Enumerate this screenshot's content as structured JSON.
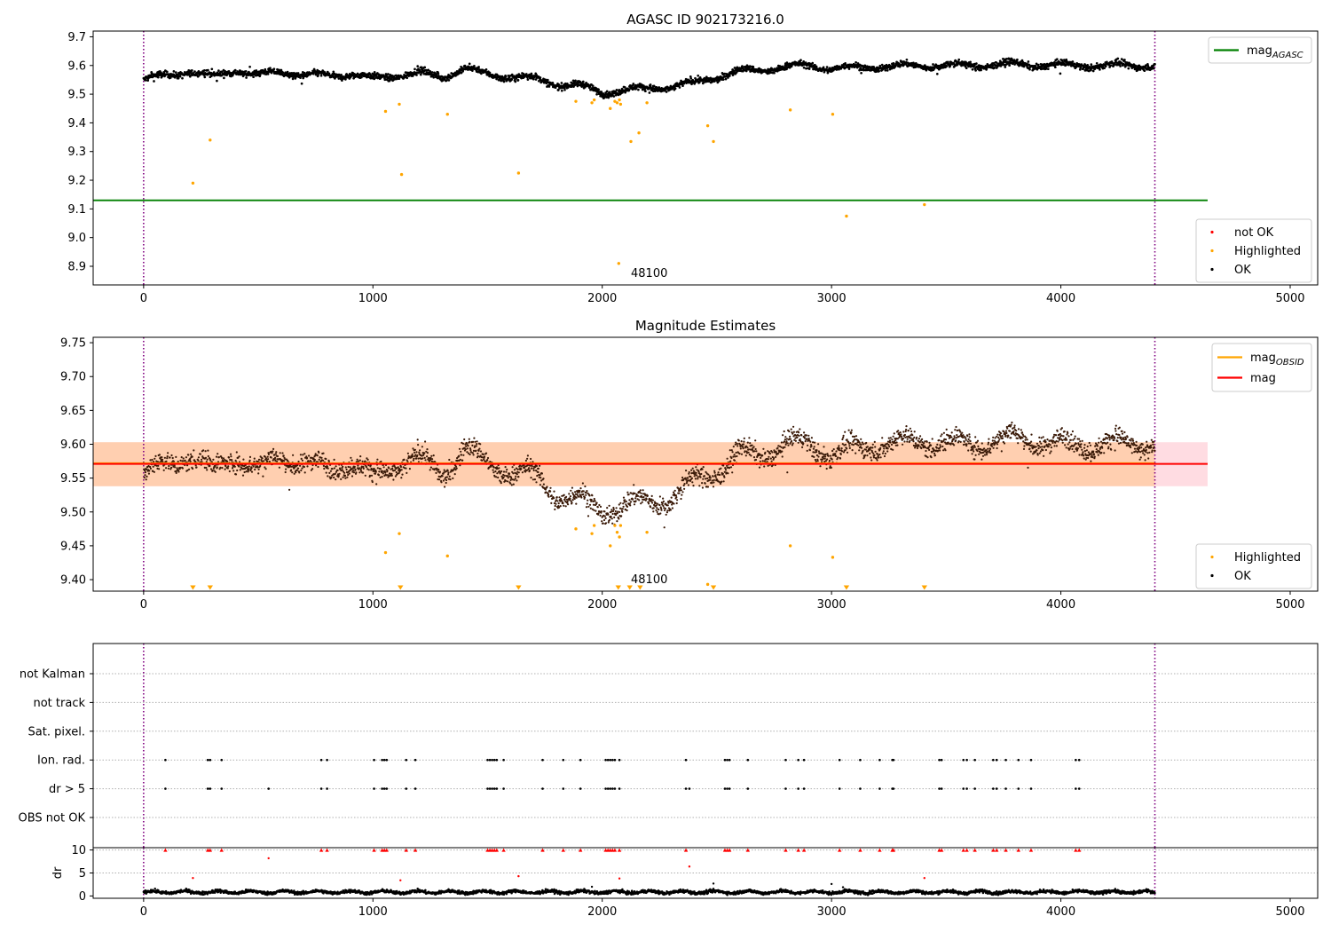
{
  "chart_data": [
    {
      "type": "scatter",
      "title": "AGASC ID 902173216.0",
      "xlim": [
        -220,
        5120
      ],
      "ylim": [
        8.835,
        9.72
      ],
      "xticks": [
        0,
        1000,
        2000,
        3000,
        4000,
        5000
      ],
      "yticks": [
        8.9,
        9.0,
        9.1,
        9.2,
        9.3,
        9.4,
        9.5,
        9.6,
        9.7
      ],
      "vlines": [
        0,
        4410
      ],
      "hlines": [
        {
          "name": "mag_AGASC",
          "y": 9.13,
          "x": [
            -220,
            4640
          ],
          "color": "#008000"
        }
      ],
      "annotations": [
        {
          "text": "48100",
          "x": 2120,
          "y": 8.88
        }
      ],
      "legends": [
        {
          "placement": "top-right",
          "entries": [
            {
              "label": "mag",
              "sub": "AGASC",
              "kind": "line",
              "color": "#008000"
            }
          ]
        },
        {
          "placement": "lower-right",
          "entries": [
            {
              "label": "not OK",
              "kind": "dot",
              "color": "#ff0000"
            },
            {
              "label": "Highlighted",
              "kind": "dot",
              "color": "#ffa500"
            },
            {
              "label": "OK",
              "kind": "dot",
              "color": "#000000"
            }
          ]
        }
      ],
      "series": [
        {
          "name": "OK",
          "color": "#000000",
          "trend": [
            [
              0,
              9.55
            ],
            [
              100,
              9.565
            ],
            [
              200,
              9.58
            ],
            [
              300,
              9.56
            ],
            [
              400,
              9.585
            ],
            [
              500,
              9.565
            ],
            [
              600,
              9.58
            ],
            [
              700,
              9.565
            ],
            [
              800,
              9.565
            ],
            [
              900,
              9.57
            ],
            [
              1000,
              9.555
            ],
            [
              1100,
              9.565
            ],
            [
              1200,
              9.575
            ],
            [
              1300,
              9.56
            ],
            [
              1400,
              9.59
            ],
            [
              1500,
              9.57
            ],
            [
              1600,
              9.56
            ],
            [
              1700,
              9.555
            ],
            [
              1800,
              9.535
            ],
            [
              1900,
              9.53
            ],
            [
              2000,
              9.505
            ],
            [
              2100,
              9.515
            ],
            [
              2200,
              9.52
            ],
            [
              2300,
              9.525
            ],
            [
              2400,
              9.54
            ],
            [
              2500,
              9.56
            ],
            [
              2600,
              9.58
            ],
            [
              2700,
              9.585
            ],
            [
              2800,
              9.595
            ],
            [
              2900,
              9.6
            ],
            [
              3000,
              9.59
            ],
            [
              3200,
              9.595
            ],
            [
              3400,
              9.6
            ],
            [
              3600,
              9.6
            ],
            [
              3800,
              9.605
            ],
            [
              4000,
              9.6
            ],
            [
              4200,
              9.6
            ],
            [
              4410,
              9.6
            ]
          ]
        },
        {
          "name": "Highlighted",
          "color": "#ffa500",
          "points": [
            [
              215,
              9.19
            ],
            [
              290,
              9.34
            ],
            [
              1055,
              9.44
            ],
            [
              1115,
              9.465
            ],
            [
              1125,
              9.22
            ],
            [
              1325,
              9.43
            ],
            [
              1635,
              9.225
            ],
            [
              1885,
              9.475
            ],
            [
              1955,
              9.47
            ],
            [
              1965,
              9.48
            ],
            [
              2035,
              9.45
            ],
            [
              2055,
              9.475
            ],
            [
              2065,
              9.47
            ],
            [
              2075,
              9.48
            ],
            [
              2080,
              9.465
            ],
            [
              2125,
              9.335
            ],
            [
              2160,
              9.365
            ],
            [
              2195,
              9.47
            ],
            [
              2460,
              9.39
            ],
            [
              2485,
              9.335
            ],
            [
              2820,
              9.445
            ],
            [
              3005,
              9.43
            ],
            [
              3065,
              9.075
            ],
            [
              3405,
              9.115
            ],
            [
              2072,
              8.91
            ]
          ]
        }
      ]
    },
    {
      "type": "scatter",
      "title": "Magnitude Estimates",
      "xlim": [
        -220,
        5120
      ],
      "ylim": [
        9.383,
        9.758
      ],
      "xticks": [
        0,
        1000,
        2000,
        3000,
        4000,
        5000
      ],
      "yticks": [
        9.4,
        9.45,
        9.5,
        9.55,
        9.6,
        9.65,
        9.7,
        9.75
      ],
      "vlines": [
        0,
        4410
      ],
      "bands": [
        {
          "y": [
            9.538,
            9.603
          ],
          "x": [
            -220,
            4640
          ],
          "color": "#ffc0cb",
          "opacity": 0.55
        },
        {
          "y": [
            9.538,
            9.603
          ],
          "x": [
            -220,
            4410
          ],
          "color": "#ffa500",
          "opacity": 0.22
        }
      ],
      "hlines": [
        {
          "name": "mag_OBSID",
          "y": 9.572,
          "x": [
            -220,
            4410
          ],
          "color": "#ffa500"
        },
        {
          "name": "mag",
          "y": 9.571,
          "x": [
            -220,
            4640
          ],
          "color": "#ff0000"
        }
      ],
      "annotations": [
        {
          "text": "48100",
          "x": 2120,
          "y": 9.41
        }
      ],
      "lower_limit_markers": [
        215,
        290,
        1120,
        1635,
        2070,
        2120,
        2165,
        2485,
        3065,
        3405
      ],
      "legends": [
        {
          "placement": "top-right",
          "entries": [
            {
              "label": "mag",
              "sub": "OBSID",
              "kind": "line",
              "color": "#ffa500"
            },
            {
              "label": "mag",
              "sub": "",
              "kind": "line",
              "color": "#ff0000"
            }
          ]
        },
        {
          "placement": "lower-right",
          "entries": [
            {
              "label": "Highlighted",
              "kind": "dot",
              "color": "#ffa500"
            },
            {
              "label": "OK",
              "kind": "dot",
              "color": "#000000"
            }
          ]
        }
      ],
      "series": [
        {
          "name": "OK",
          "color": "#000000",
          "trend": [
            [
              0,
              9.555
            ],
            [
              100,
              9.57
            ],
            [
              200,
              9.585
            ],
            [
              300,
              9.56
            ],
            [
              400,
              9.585
            ],
            [
              500,
              9.56
            ],
            [
              600,
              9.585
            ],
            [
              700,
              9.57
            ],
            [
              800,
              9.565
            ],
            [
              900,
              9.575
            ],
            [
              1000,
              9.55
            ],
            [
              1100,
              9.57
            ],
            [
              1200,
              9.58
            ],
            [
              1300,
              9.555
            ],
            [
              1400,
              9.595
            ],
            [
              1500,
              9.57
            ],
            [
              1600,
              9.56
            ],
            [
              1700,
              9.555
            ],
            [
              1800,
              9.525
            ],
            [
              1900,
              9.52
            ],
            [
              2000,
              9.5
            ],
            [
              2100,
              9.51
            ],
            [
              2200,
              9.515
            ],
            [
              2300,
              9.52
            ],
            [
              2400,
              9.545
            ],
            [
              2500,
              9.56
            ],
            [
              2600,
              9.585
            ],
            [
              2700,
              9.585
            ],
            [
              2800,
              9.6
            ],
            [
              2900,
              9.6
            ],
            [
              3000,
              9.585
            ],
            [
              3200,
              9.6
            ],
            [
              3400,
              9.605
            ],
            [
              3600,
              9.6
            ],
            [
              3800,
              9.61
            ],
            [
              4000,
              9.6
            ],
            [
              4200,
              9.6
            ],
            [
              4410,
              9.6
            ]
          ]
        },
        {
          "name": "Highlighted",
          "color": "#ffa500",
          "points": [
            [
              1055,
              9.44
            ],
            [
              1115,
              9.468
            ],
            [
              1325,
              9.435
            ],
            [
              1885,
              9.475
            ],
            [
              1955,
              9.468
            ],
            [
              1965,
              9.48
            ],
            [
              2035,
              9.45
            ],
            [
              2055,
              9.48
            ],
            [
              2065,
              9.47
            ],
            [
              2075,
              9.463
            ],
            [
              2080,
              9.48
            ],
            [
              2195,
              9.47
            ],
            [
              2460,
              9.393
            ],
            [
              2820,
              9.45
            ],
            [
              3005,
              9.433
            ]
          ]
        }
      ]
    },
    {
      "type": "scatter",
      "title": "",
      "xlim": [
        -220,
        5120
      ],
      "xticks": [
        0,
        1000,
        2000,
        3000,
        4000,
        5000
      ],
      "vlines": [
        0,
        4410
      ],
      "flag_rows": [
        "not Kalman",
        "not track",
        "Sat. pixel.",
        "Ion. rad.",
        "dr > 5",
        "OBS not OK"
      ],
      "flag_times": {
        "Ion. rad.": [
          95,
          280,
          290,
          340,
          775,
          800,
          1005,
          1040,
          1050,
          1060,
          1145,
          1185,
          1500,
          1510,
          1520,
          1530,
          1540,
          1570,
          1740,
          1830,
          1905,
          2015,
          2025,
          2035,
          2045,
          2055,
          2075,
          2365,
          2535,
          2545,
          2555,
          2635,
          2800,
          2855,
          2880,
          3035,
          3125,
          3210,
          3265,
          3270,
          3470,
          3480,
          3575,
          3590,
          3625,
          3705,
          3720,
          3760,
          3815,
          3870,
          4065,
          4080
        ],
        "dr > 5": [
          95,
          280,
          290,
          340,
          545,
          775,
          800,
          1005,
          1040,
          1050,
          1060,
          1145,
          1185,
          1500,
          1510,
          1520,
          1530,
          1540,
          1570,
          1740,
          1830,
          1905,
          2015,
          2025,
          2035,
          2045,
          2055,
          2075,
          2365,
          2380,
          2535,
          2545,
          2555,
          2635,
          2800,
          2855,
          2880,
          3035,
          3125,
          3210,
          3265,
          3270,
          3470,
          3480,
          3575,
          3590,
          3625,
          3705,
          3720,
          3760,
          3815,
          3870,
          4065,
          4080
        ]
      }
    },
    {
      "type": "scatter",
      "title": "",
      "ylabel": "dr",
      "xlim": [
        -220,
        5120
      ],
      "ylim": [
        -0.5,
        10.5
      ],
      "xticks": [
        0,
        1000,
        2000,
        3000,
        4000,
        5000
      ],
      "yticks": [
        0,
        5,
        10
      ],
      "vlines": [
        0,
        4410
      ],
      "clipped_at": 10,
      "series": [
        {
          "name": "OK",
          "color": "#000000",
          "typical": [
            0.2,
            1.6
          ]
        },
        {
          "name": "not OK",
          "color": "#ff0000",
          "points": [
            [
              95,
              10
            ],
            [
              280,
              10
            ],
            [
              290,
              10
            ],
            [
              340,
              10
            ],
            [
              775,
              10
            ],
            [
              800,
              10
            ],
            [
              1005,
              10
            ],
            [
              1040,
              10
            ],
            [
              1050,
              10
            ],
            [
              1060,
              10
            ],
            [
              1145,
              10
            ],
            [
              1185,
              10
            ],
            [
              1500,
              10
            ],
            [
              1510,
              10
            ],
            [
              1520,
              10
            ],
            [
              1530,
              10
            ],
            [
              1540,
              10
            ],
            [
              1570,
              10
            ],
            [
              1740,
              10
            ],
            [
              1830,
              10
            ],
            [
              1905,
              10
            ],
            [
              2015,
              10
            ],
            [
              2025,
              10
            ],
            [
              2035,
              10
            ],
            [
              2045,
              10
            ],
            [
              2055,
              10
            ],
            [
              2075,
              10
            ],
            [
              2365,
              10
            ],
            [
              2535,
              10
            ],
            [
              2545,
              10
            ],
            [
              2555,
              10
            ],
            [
              2635,
              10
            ],
            [
              2800,
              10
            ],
            [
              2855,
              10
            ],
            [
              2880,
              10
            ],
            [
              3035,
              10
            ],
            [
              3125,
              10
            ],
            [
              3210,
              10
            ],
            [
              3265,
              10
            ],
            [
              3270,
              10
            ],
            [
              3470,
              10
            ],
            [
              3480,
              10
            ],
            [
              3575,
              10
            ],
            [
              3590,
              10
            ],
            [
              3625,
              10
            ],
            [
              3705,
              10
            ],
            [
              3720,
              10
            ],
            [
              3760,
              10
            ],
            [
              3815,
              10
            ],
            [
              3870,
              10
            ],
            [
              4065,
              10
            ],
            [
              4080,
              10
            ],
            [
              545,
              8.2
            ],
            [
              215,
              3.9
            ],
            [
              1120,
              3.4
            ],
            [
              1635,
              4.3
            ],
            [
              2075,
              3.8
            ],
            [
              2380,
              6.4
            ],
            [
              3405,
              3.9
            ]
          ]
        },
        {
          "name": "OK",
          "color": "#000000",
          "points": [
            [
              2485,
              2.7
            ],
            [
              3000,
              2.6
            ],
            [
              3050,
              1.9
            ],
            [
              1955,
              2.0
            ]
          ]
        }
      ]
    }
  ]
}
